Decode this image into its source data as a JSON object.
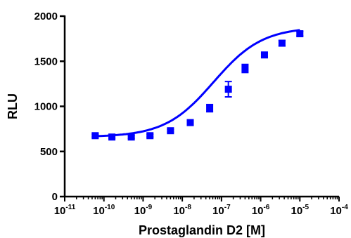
{
  "chart_data": {
    "type": "scatter",
    "title": "",
    "xlabel": "Prostaglandin D2 [M]",
    "ylabel": "RLU",
    "xscale": "log",
    "xlim": [
      1e-11,
      0.0001
    ],
    "ylim": [
      0,
      2000
    ],
    "grid": false,
    "legend": "none",
    "x_ticks": [
      {
        "base": "10",
        "exp": "-11"
      },
      {
        "base": "10",
        "exp": "-10"
      },
      {
        "base": "10",
        "exp": "-9"
      },
      {
        "base": "10",
        "exp": "-8"
      },
      {
        "base": "10",
        "exp": "-7"
      },
      {
        "base": "10",
        "exp": "-6"
      },
      {
        "base": "10",
        "exp": "-5"
      },
      {
        "base": "10",
        "exp": "-4"
      }
    ],
    "y_ticks": [
      "0",
      "500",
      "1000",
      "1500",
      "2000"
    ],
    "color": "#0000ff",
    "series": [
      {
        "x": [
          6e-11,
          1.6e-10,
          5e-10,
          1.5e-09,
          5e-09,
          1.6e-08,
          5e-08,
          1.5e-07,
          4e-07,
          1.25e-06,
          3.5e-06,
          1e-05
        ],
        "y": [
          675,
          660,
          660,
          675,
          730,
          820,
          980,
          1190,
          1420,
          1570,
          1700,
          1805
        ],
        "err": [
          15,
          15,
          15,
          15,
          15,
          20,
          40,
          85,
          45,
          20,
          30,
          25
        ]
      }
    ],
    "fit": {
      "bottom": 660,
      "top": 1880,
      "logEC50": -7.2,
      "hill": 0.7
    }
  }
}
